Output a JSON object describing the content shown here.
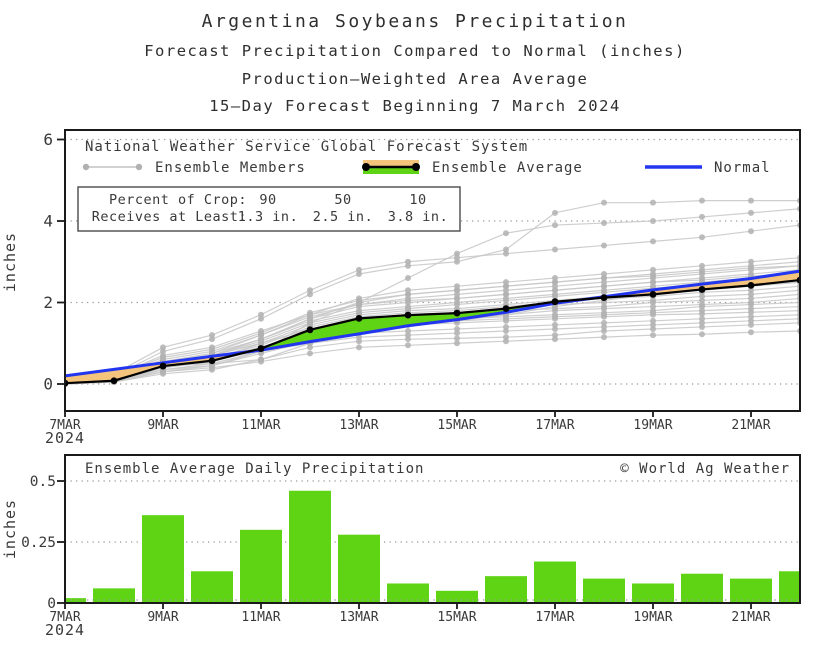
{
  "titles": {
    "line1": "Argentina Soybeans Precipitation",
    "line2": "Forecast Precipitation Compared to Normal (inches)",
    "line3": "Production–Weighted Area Average",
    "line4": "15–Day Forecast Beginning 7 March 2024"
  },
  "colors": {
    "bar_green": "#5fd414",
    "fill_green": "#5fd414",
    "fill_orange": "#f5c47c",
    "normal_blue": "#2336ef",
    "average_black": "#000000",
    "member_line": "#c9c9c9",
    "member_dot": "#b1b1b1",
    "grid": "#9a9a9a",
    "frame": "#1a1a1a",
    "text": "#3a3a3a"
  },
  "top_chart": {
    "legend_header": "National Weather Service Global Forecast System",
    "legend_members": "Ensemble Members",
    "legend_average": "Ensemble Average",
    "legend_normal": "Normal",
    "ylabel": "inches",
    "year": "2024",
    "percent_table": {
      "row1_label": "Percent of Crop:",
      "row2_label": "Receives at Least:",
      "columns": [
        {
          "percent": "90",
          "amount": "1.3 in."
        },
        {
          "percent": "50",
          "amount": "2.5 in."
        },
        {
          "percent": "10",
          "amount": "3.8 in."
        }
      ]
    }
  },
  "bottom_chart": {
    "title": "Ensemble Average Daily Precipitation",
    "credit": "© World Ag Weather",
    "ylabel": "inches",
    "year": "2024"
  },
  "chart_data": [
    {
      "type": "line",
      "title": "Forecast cumulative precipitation compared to normal (inches)",
      "categories": [
        "7MAR",
        "8MAR",
        "9MAR",
        "10MAR",
        "11MAR",
        "12MAR",
        "13MAR",
        "14MAR",
        "15MAR",
        "16MAR",
        "17MAR",
        "18MAR",
        "19MAR",
        "20MAR",
        "21MAR",
        "22MAR"
      ],
      "x_tick_labels": [
        "7MAR",
        "9MAR",
        "11MAR",
        "13MAR",
        "15MAR",
        "17MAR",
        "19MAR",
        "21MAR"
      ],
      "ylabel": "inches",
      "ylim": [
        -0.65,
        6.25
      ],
      "yticks": [
        0,
        2,
        4,
        6
      ],
      "grid": "dotted",
      "legend_position": "inside-top-left",
      "series": [
        {
          "name": "Ensemble Average",
          "values": [
            0.02,
            0.08,
            0.44,
            0.57,
            0.87,
            1.33,
            1.61,
            1.69,
            1.74,
            1.85,
            2.02,
            2.12,
            2.2,
            2.32,
            2.42,
            2.55
          ]
        },
        {
          "name": "Normal",
          "values": [
            0.2,
            0.36,
            0.52,
            0.68,
            0.83,
            1.04,
            1.23,
            1.43,
            1.58,
            1.76,
            1.98,
            2.14,
            2.31,
            2.45,
            2.59,
            2.77
          ]
        }
      ],
      "members": [
        [
          0,
          0.05,
          0.3,
          0.4,
          0.55,
          0.75,
          0.9,
          0.95,
          1,
          1.05,
          1.1,
          1.15,
          1.2,
          1.22,
          1.27,
          1.3
        ],
        [
          0,
          0.1,
          0.45,
          0.5,
          0.6,
          0.9,
          1.05,
          1.1,
          1.12,
          1.15,
          1.2,
          1.3,
          1.35,
          1.4,
          1.45,
          1.5
        ],
        [
          0.05,
          0.1,
          0.5,
          0.6,
          0.8,
          1,
          1.15,
          1.2,
          1.25,
          1.3,
          1.35,
          1.4,
          1.45,
          1.5,
          1.55,
          1.6
        ],
        [
          0,
          0.05,
          0.35,
          0.45,
          0.75,
          1.05,
          1.25,
          1.3,
          1.35,
          1.4,
          1.45,
          1.5,
          1.55,
          1.6,
          1.65,
          1.7
        ],
        [
          0.02,
          0.1,
          0.4,
          0.55,
          0.85,
          1.15,
          1.35,
          1.45,
          1.5,
          1.55,
          1.6,
          1.65,
          1.7,
          1.72,
          1.76,
          1.8
        ],
        [
          0,
          0.05,
          0.5,
          0.65,
          0.9,
          1.2,
          1.45,
          1.5,
          1.55,
          1.6,
          1.65,
          1.7,
          1.75,
          1.8,
          1.85,
          1.9
        ],
        [
          0.05,
          0.15,
          0.55,
          0.7,
          1,
          1.35,
          1.5,
          1.55,
          1.6,
          1.65,
          1.7,
          1.75,
          1.8,
          1.9,
          1.95,
          2
        ],
        [
          0,
          0.1,
          0.35,
          0.5,
          0.8,
          1.2,
          1.5,
          1.6,
          1.65,
          1.7,
          1.8,
          1.85,
          1.9,
          1.95,
          2,
          2.1
        ],
        [
          0.05,
          0.1,
          0.45,
          0.6,
          0.9,
          1.3,
          1.55,
          1.65,
          1.7,
          1.8,
          1.85,
          1.9,
          2,
          2.05,
          2.1,
          2.2
        ],
        [
          0,
          0.05,
          0.4,
          0.55,
          0.85,
          1.35,
          1.6,
          1.7,
          1.75,
          1.85,
          1.95,
          2,
          2.05,
          2.15,
          2.2,
          2.3
        ],
        [
          0.02,
          0.1,
          0.5,
          0.65,
          0.95,
          1.4,
          1.65,
          1.75,
          1.8,
          1.9,
          2,
          2.1,
          2.15,
          2.25,
          2.3,
          2.4
        ],
        [
          0,
          0.1,
          0.45,
          0.6,
          1,
          1.45,
          1.7,
          1.8,
          1.85,
          1.95,
          2.05,
          2.15,
          2.25,
          2.3,
          2.4,
          2.5
        ],
        [
          0,
          0.05,
          0.25,
          0.35,
          0.6,
          1,
          1.3,
          1.45,
          1.55,
          1.7,
          1.9,
          2.05,
          2.2,
          2.3,
          2.4,
          2.5
        ],
        [
          0.05,
          0.15,
          0.5,
          0.7,
          1.05,
          1.5,
          1.75,
          1.85,
          1.95,
          2.05,
          2.15,
          2.25,
          2.35,
          2.45,
          2.5,
          2.6
        ],
        [
          0,
          0.1,
          0.55,
          0.75,
          1.1,
          1.55,
          1.8,
          1.9,
          2,
          2.1,
          2.2,
          2.3,
          2.4,
          2.5,
          2.6,
          2.7
        ],
        [
          0.05,
          0.2,
          0.7,
          0.9,
          1.3,
          1.7,
          1.95,
          2.05,
          2.1,
          2.2,
          2.3,
          2.4,
          2.5,
          2.55,
          2.65,
          2.7
        ],
        [
          0,
          0.1,
          0.5,
          0.7,
          1.1,
          1.6,
          1.9,
          2,
          2.1,
          2.2,
          2.3,
          2.4,
          2.5,
          2.6,
          2.7,
          2.8
        ],
        [
          0.05,
          0.15,
          0.6,
          0.8,
          1.2,
          1.65,
          1.95,
          2.1,
          2.2,
          2.3,
          2.4,
          2.5,
          2.6,
          2.7,
          2.8,
          2.9
        ],
        [
          0,
          0.05,
          0.3,
          0.45,
          0.8,
          1.5,
          2,
          2.2,
          2.3,
          2.4,
          2.5,
          2.6,
          2.65,
          2.75,
          2.85,
          2.9
        ],
        [
          0.05,
          0.2,
          0.65,
          0.85,
          1.25,
          1.75,
          2.05,
          2.2,
          2.3,
          2.4,
          2.5,
          2.6,
          2.7,
          2.8,
          2.9,
          3
        ],
        [
          0,
          0.1,
          0.55,
          0.75,
          1.2,
          1.7,
          2.1,
          2.3,
          2.4,
          2.5,
          2.6,
          2.7,
          2.8,
          2.9,
          3,
          3.1
        ],
        [
          0.05,
          0.25,
          0.9,
          1.2,
          1.7,
          2.3,
          2.8,
          3,
          3.1,
          3.2,
          3.3,
          3.4,
          3.5,
          3.6,
          3.75,
          3.9
        ],
        [
          0,
          0.1,
          0.5,
          0.7,
          1.1,
          1.6,
          2,
          2.6,
          3.2,
          3.7,
          3.9,
          3.95,
          4,
          4.1,
          4.2,
          4.3
        ],
        [
          0.05,
          0.2,
          0.8,
          1.1,
          1.6,
          2.2,
          2.7,
          2.9,
          3,
          3.3,
          4.2,
          4.45,
          4.45,
          4.5,
          4.5,
          4.5
        ]
      ]
    },
    {
      "type": "bar",
      "title": "Ensemble Average Daily Precipitation",
      "categories": [
        "7MAR",
        "8MAR",
        "9MAR",
        "10MAR",
        "11MAR",
        "12MAR",
        "13MAR",
        "14MAR",
        "15MAR",
        "16MAR",
        "17MAR",
        "18MAR",
        "19MAR",
        "20MAR",
        "21MAR",
        "22MAR"
      ],
      "x_tick_labels": [
        "7MAR",
        "9MAR",
        "11MAR",
        "13MAR",
        "15MAR",
        "17MAR",
        "19MAR",
        "21MAR"
      ],
      "values": [
        0.02,
        0.06,
        0.36,
        0.13,
        0.3,
        0.46,
        0.28,
        0.08,
        0.05,
        0.11,
        0.17,
        0.1,
        0.08,
        0.12,
        0.1,
        0.13
      ],
      "ylabel": "inches",
      "ylim": [
        0,
        0.61
      ],
      "yticks": [
        0,
        0.25,
        0.5
      ],
      "ytick_labels": [
        "0",
        "0.25",
        "0.5"
      ],
      "grid": "dotted"
    }
  ]
}
